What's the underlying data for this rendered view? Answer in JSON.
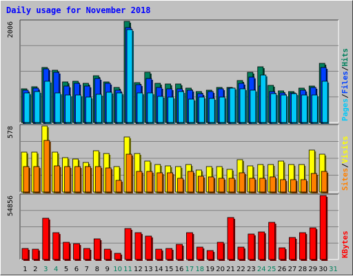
{
  "title": "Daily usage for November 2018",
  "colors": {
    "hits": "#00805c",
    "files": "#0040ff",
    "pages": "#00c8f8",
    "visits": "#ffff00",
    "sites": "#ff8000",
    "kbytes": "#ff0000",
    "weekend_day_label": "#00805c",
    "title": "#0000ff",
    "plot_bg": "#c0c0c0"
  },
  "chart_data": [
    {
      "type": "bar",
      "name": "Pages / Files / Hits",
      "ymax_label": "2006",
      "ymax": 2006,
      "legend": [
        "Pages",
        "/",
        "Files",
        "/",
        "Hits"
      ],
      "categories": [
        "1",
        "2",
        "3",
        "4",
        "5",
        "6",
        "7",
        "8",
        "9",
        "10",
        "11",
        "12",
        "13",
        "14",
        "15",
        "16",
        "17",
        "18",
        "19",
        "20",
        "21",
        "22",
        "23",
        "24",
        "25",
        "26",
        "27",
        "28",
        "29",
        "30",
        "31"
      ],
      "series": [
        {
          "name": "Hits",
          "values": [
            670,
            710,
            1095,
            1040,
            800,
            820,
            780,
            930,
            810,
            690,
            2006,
            790,
            1000,
            780,
            770,
            770,
            680,
            610,
            640,
            700,
            700,
            830,
            1000,
            1100,
            740,
            630,
            610,
            680,
            720,
            1180,
            null
          ]
        },
        {
          "name": "Files",
          "values": [
            640,
            680,
            1060,
            1000,
            730,
            780,
            730,
            870,
            780,
            640,
            1880,
            750,
            880,
            700,
            670,
            670,
            640,
            570,
            610,
            670,
            680,
            780,
            900,
            730,
            620,
            590,
            590,
            640,
            700,
            1090,
            null
          ]
        },
        {
          "name": "Pages",
          "values": [
            580,
            620,
            820,
            580,
            540,
            540,
            500,
            560,
            600,
            590,
            1840,
            580,
            590,
            520,
            500,
            620,
            460,
            500,
            480,
            500,
            680,
            670,
            640,
            940,
            570,
            540,
            570,
            540,
            540,
            820,
            null
          ]
        }
      ]
    },
    {
      "type": "bar",
      "name": "Visits / Sites",
      "ymax_label": "578",
      "ymax": 578,
      "legend": [
        "Sites",
        "/",
        "Visits"
      ],
      "categories": [
        "1",
        "2",
        "3",
        "4",
        "5",
        "6",
        "7",
        "8",
        "9",
        "10",
        "11",
        "12",
        "13",
        "14",
        "15",
        "16",
        "17",
        "18",
        "19",
        "20",
        "21",
        "22",
        "23",
        "24",
        "25",
        "26",
        "27",
        "28",
        "29",
        "30",
        "31"
      ],
      "series": [
        {
          "name": "Visits",
          "values": [
            350,
            350,
            578,
            350,
            300,
            290,
            260,
            360,
            340,
            220,
            480,
            340,
            270,
            240,
            230,
            220,
            240,
            190,
            220,
            220,
            200,
            280,
            230,
            240,
            240,
            270,
            240,
            240,
            370,
            330,
            null
          ]
        },
        {
          "name": "Sites",
          "values": [
            220,
            220,
            450,
            230,
            220,
            220,
            220,
            220,
            210,
            100,
            330,
            180,
            180,
            170,
            170,
            120,
            180,
            140,
            130,
            120,
            120,
            170,
            120,
            120,
            130,
            110,
            110,
            110,
            160,
            180,
            null
          ]
        }
      ]
    },
    {
      "type": "bar",
      "name": "KBytes",
      "ymax_label": "54856",
      "ymax": 54856,
      "legend": [
        "KBytes"
      ],
      "categories": [
        "1",
        "2",
        "3",
        "4",
        "5",
        "6",
        "7",
        "8",
        "9",
        "10",
        "11",
        "12",
        "13",
        "14",
        "15",
        "16",
        "17",
        "18",
        "19",
        "20",
        "21",
        "22",
        "23",
        "24",
        "25",
        "26",
        "27",
        "28",
        "29",
        "30",
        "31"
      ],
      "series": [
        {
          "name": "KBytes",
          "values": [
            9500,
            8900,
            35500,
            23000,
            14900,
            13800,
            9700,
            17600,
            8700,
            5200,
            26500,
            22800,
            20200,
            8800,
            9400,
            13100,
            22800,
            10500,
            7500,
            14500,
            36200,
            10800,
            21800,
            23600,
            31600,
            9800,
            18600,
            23000,
            26900,
            54856,
            null
          ]
        }
      ]
    }
  ],
  "weekend_days": [
    "3",
    "4",
    "10",
    "11",
    "17",
    "18",
    "24",
    "25",
    "31"
  ]
}
